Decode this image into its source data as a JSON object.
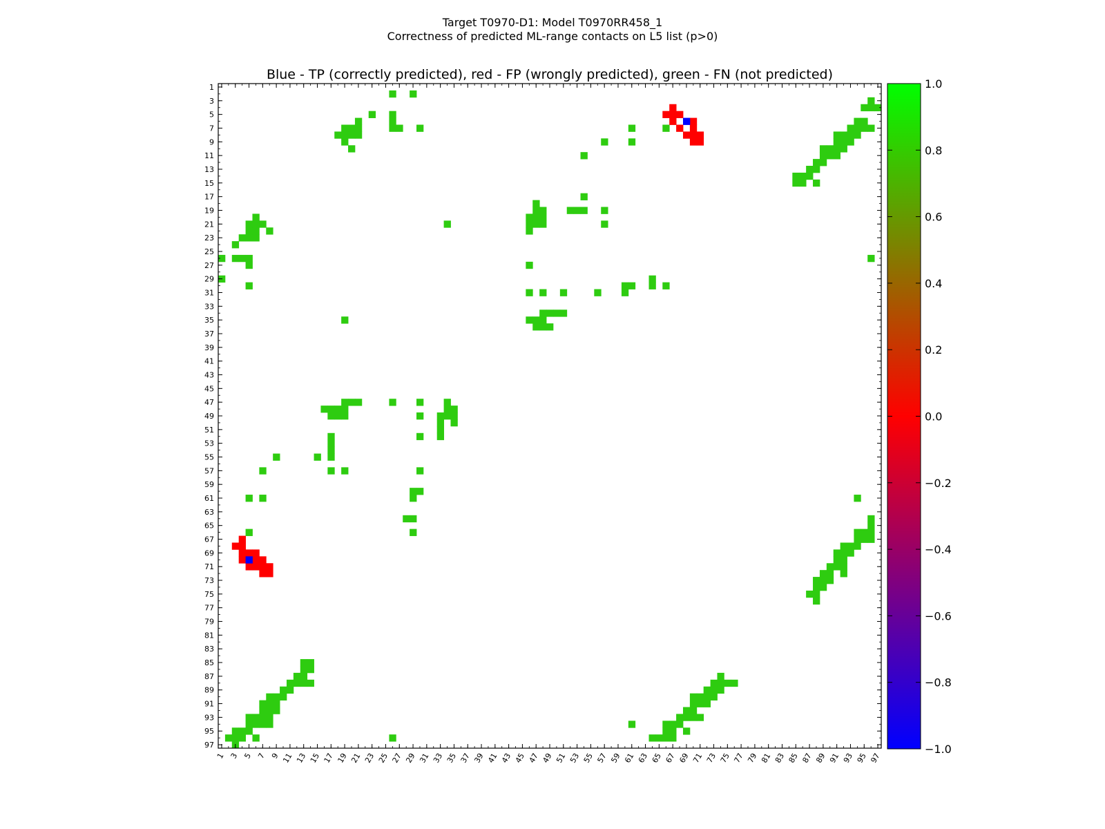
{
  "suptitle_line1": "Target T0970-D1: Model T0970RR458_1",
  "suptitle_line2": "Correctness of predicted ML-range contacts on L5 list (p>0)",
  "chart_data": {
    "type": "heatmap",
    "title": "Blue - TP (correctly predicted), red - FP (wrongly predicted), green - FN (not predicted)",
    "n": 97,
    "x_range": [
      1,
      97
    ],
    "y_range": [
      1,
      97
    ],
    "tick_labels": [
      1,
      3,
      5,
      7,
      9,
      11,
      13,
      15,
      17,
      19,
      21,
      23,
      25,
      27,
      29,
      31,
      33,
      35,
      37,
      39,
      41,
      43,
      45,
      47,
      49,
      51,
      53,
      55,
      57,
      59,
      61,
      63,
      65,
      67,
      69,
      71,
      73,
      75,
      77,
      79,
      81,
      83,
      85,
      87,
      89,
      91,
      93,
      95,
      97
    ],
    "colorbar": {
      "min": -1.0,
      "max": 1.0,
      "ticks": [
        "1.0",
        "0.8",
        "0.6",
        "0.4",
        "0.2",
        "0.0",
        "−0.2",
        "−0.4",
        "−0.6",
        "−0.8",
        "−1.0"
      ],
      "colors": [
        "#0000ff",
        "#ff0000",
        "#00ff00"
      ]
    },
    "legend_values": {
      "tp": -1.0,
      "fp": 0.0,
      "fn": 0.85
    },
    "cell_colors": {
      "fn": "#2ecc10",
      "fp": "#ff0000",
      "tp": "#0000ff"
    },
    "fn_cells": [
      [
        26,
        2
      ],
      [
        29,
        2
      ],
      [
        96,
        3
      ],
      [
        95,
        4
      ],
      [
        96,
        4
      ],
      [
        97,
        4
      ],
      [
        23,
        5
      ],
      [
        26,
        5
      ],
      [
        21,
        6
      ],
      [
        26,
        6
      ],
      [
        94,
        6
      ],
      [
        95,
        6
      ],
      [
        19,
        7
      ],
      [
        20,
        7
      ],
      [
        21,
        7
      ],
      [
        26,
        7
      ],
      [
        27,
        7
      ],
      [
        30,
        7
      ],
      [
        61,
        7
      ],
      [
        66,
        7
      ],
      [
        93,
        7
      ],
      [
        94,
        7
      ],
      [
        95,
        7
      ],
      [
        96,
        7
      ],
      [
        18,
        8
      ],
      [
        19,
        8
      ],
      [
        20,
        8
      ],
      [
        21,
        8
      ],
      [
        91,
        8
      ],
      [
        92,
        8
      ],
      [
        93,
        8
      ],
      [
        94,
        8
      ],
      [
        19,
        9
      ],
      [
        57,
        9
      ],
      [
        61,
        9
      ],
      [
        91,
        9
      ],
      [
        92,
        9
      ],
      [
        93,
        9
      ],
      [
        20,
        10
      ],
      [
        89,
        10
      ],
      [
        90,
        10
      ],
      [
        91,
        10
      ],
      [
        92,
        10
      ],
      [
        54,
        11
      ],
      [
        89,
        11
      ],
      [
        90,
        11
      ],
      [
        91,
        11
      ],
      [
        88,
        12
      ],
      [
        89,
        12
      ],
      [
        87,
        13
      ],
      [
        88,
        13
      ],
      [
        85,
        14
      ],
      [
        86,
        14
      ],
      [
        87,
        14
      ],
      [
        85,
        15
      ],
      [
        86,
        15
      ],
      [
        88,
        15
      ],
      [
        54,
        17
      ],
      [
        47,
        18
      ],
      [
        47,
        19
      ],
      [
        48,
        19
      ],
      [
        52,
        19
      ],
      [
        53,
        19
      ],
      [
        54,
        19
      ],
      [
        57,
        19
      ],
      [
        6,
        20
      ],
      [
        46,
        20
      ],
      [
        47,
        20
      ],
      [
        48,
        20
      ],
      [
        5,
        21
      ],
      [
        6,
        21
      ],
      [
        7,
        21
      ],
      [
        34,
        21
      ],
      [
        46,
        21
      ],
      [
        47,
        21
      ],
      [
        48,
        21
      ],
      [
        57,
        21
      ],
      [
        5,
        22
      ],
      [
        6,
        22
      ],
      [
        8,
        22
      ],
      [
        46,
        22
      ],
      [
        4,
        23
      ],
      [
        5,
        23
      ],
      [
        6,
        23
      ],
      [
        3,
        24
      ],
      [
        1,
        26
      ],
      [
        3,
        26
      ],
      [
        4,
        26
      ],
      [
        5,
        26
      ],
      [
        96,
        26
      ],
      [
        5,
        27
      ],
      [
        46,
        27
      ],
      [
        1,
        29
      ],
      [
        64,
        29
      ],
      [
        5,
        30
      ],
      [
        60,
        30
      ],
      [
        61,
        30
      ],
      [
        64,
        30
      ],
      [
        66,
        30
      ],
      [
        46,
        31
      ],
      [
        48,
        31
      ],
      [
        51,
        31
      ],
      [
        56,
        31
      ],
      [
        60,
        31
      ],
      [
        48,
        34
      ],
      [
        49,
        34
      ],
      [
        50,
        34
      ],
      [
        51,
        34
      ],
      [
        19,
        35
      ],
      [
        46,
        35
      ],
      [
        47,
        35
      ],
      [
        48,
        35
      ],
      [
        47,
        36
      ],
      [
        48,
        36
      ],
      [
        49,
        36
      ],
      [
        19,
        47
      ],
      [
        20,
        47
      ],
      [
        21,
        47
      ],
      [
        26,
        47
      ],
      [
        30,
        47
      ],
      [
        34,
        47
      ],
      [
        16,
        48
      ],
      [
        17,
        48
      ],
      [
        18,
        48
      ],
      [
        19,
        48
      ],
      [
        34,
        48
      ],
      [
        35,
        48
      ],
      [
        17,
        49
      ],
      [
        18,
        49
      ],
      [
        19,
        49
      ],
      [
        30,
        49
      ],
      [
        33,
        49
      ],
      [
        34,
        49
      ],
      [
        35,
        49
      ],
      [
        33,
        50
      ],
      [
        35,
        50
      ],
      [
        33,
        51
      ],
      [
        17,
        52
      ],
      [
        30,
        52
      ],
      [
        33,
        52
      ],
      [
        17,
        53
      ],
      [
        17,
        54
      ],
      [
        9,
        55
      ],
      [
        15,
        55
      ],
      [
        17,
        55
      ],
      [
        7,
        57
      ],
      [
        17,
        57
      ],
      [
        19,
        57
      ],
      [
        30,
        57
      ],
      [
        29,
        60
      ],
      [
        30,
        60
      ],
      [
        29,
        61
      ],
      [
        5,
        61
      ],
      [
        7,
        61
      ],
      [
        94,
        61
      ],
      [
        28,
        64
      ],
      [
        29,
        64
      ],
      [
        96,
        64
      ],
      [
        96,
        65
      ],
      [
        29,
        66
      ],
      [
        5,
        66
      ],
      [
        94,
        66
      ],
      [
        95,
        66
      ],
      [
        96,
        66
      ],
      [
        94,
        67
      ],
      [
        95,
        67
      ],
      [
        96,
        67
      ],
      [
        92,
        68
      ],
      [
        93,
        68
      ],
      [
        94,
        68
      ],
      [
        91,
        69
      ],
      [
        92,
        69
      ],
      [
        93,
        69
      ],
      [
        91,
        70
      ],
      [
        92,
        70
      ],
      [
        90,
        71
      ],
      [
        91,
        71
      ],
      [
        92,
        71
      ],
      [
        89,
        72
      ],
      [
        90,
        72
      ],
      [
        92,
        72
      ],
      [
        88,
        73
      ],
      [
        89,
        73
      ],
      [
        90,
        73
      ],
      [
        88,
        74
      ],
      [
        89,
        74
      ],
      [
        87,
        75
      ],
      [
        88,
        75
      ],
      [
        88,
        76
      ],
      [
        13,
        85
      ],
      [
        14,
        85
      ],
      [
        13,
        86
      ],
      [
        14,
        86
      ],
      [
        12,
        87
      ],
      [
        13,
        87
      ],
      [
        11,
        88
      ],
      [
        12,
        88
      ],
      [
        13,
        88
      ],
      [
        14,
        88
      ],
      [
        74,
        87
      ],
      [
        73,
        88
      ],
      [
        74,
        88
      ],
      [
        75,
        88
      ],
      [
        76,
        88
      ],
      [
        10,
        89
      ],
      [
        11,
        89
      ],
      [
        8,
        90
      ],
      [
        9,
        90
      ],
      [
        10,
        90
      ],
      [
        72,
        89
      ],
      [
        73,
        89
      ],
      [
        74,
        89
      ],
      [
        70,
        90
      ],
      [
        71,
        90
      ],
      [
        72,
        90
      ],
      [
        73,
        90
      ],
      [
        7,
        91
      ],
      [
        8,
        91
      ],
      [
        9,
        91
      ],
      [
        70,
        91
      ],
      [
        71,
        91
      ],
      [
        72,
        91
      ],
      [
        7,
        92
      ],
      [
        8,
        92
      ],
      [
        9,
        92
      ],
      [
        69,
        92
      ],
      [
        70,
        92
      ],
      [
        5,
        93
      ],
      [
        6,
        93
      ],
      [
        7,
        93
      ],
      [
        8,
        93
      ],
      [
        68,
        93
      ],
      [
        69,
        93
      ],
      [
        70,
        93
      ],
      [
        71,
        93
      ],
      [
        5,
        94
      ],
      [
        6,
        94
      ],
      [
        7,
        94
      ],
      [
        8,
        94
      ],
      [
        61,
        94
      ],
      [
        66,
        94
      ],
      [
        67,
        94
      ],
      [
        68,
        94
      ],
      [
        3,
        95
      ],
      [
        4,
        95
      ],
      [
        5,
        95
      ],
      [
        66,
        95
      ],
      [
        67,
        95
      ],
      [
        69,
        95
      ],
      [
        2,
        96
      ],
      [
        3,
        96
      ],
      [
        4,
        96
      ],
      [
        6,
        96
      ],
      [
        26,
        96
      ],
      [
        64,
        96
      ],
      [
        65,
        96
      ],
      [
        66,
        96
      ],
      [
        67,
        96
      ],
      [
        3,
        97
      ]
    ],
    "fp_cells": [
      [
        67,
        4
      ],
      [
        66,
        5
      ],
      [
        67,
        5
      ],
      [
        68,
        5
      ],
      [
        67,
        6
      ],
      [
        70,
        6
      ],
      [
        68,
        7
      ],
      [
        70,
        7
      ],
      [
        69,
        8
      ],
      [
        70,
        8
      ],
      [
        71,
        8
      ],
      [
        70,
        9
      ],
      [
        71,
        9
      ],
      [
        4,
        67
      ],
      [
        3,
        68
      ],
      [
        4,
        68
      ],
      [
        4,
        69
      ],
      [
        5,
        69
      ],
      [
        6,
        69
      ],
      [
        4,
        70
      ],
      [
        6,
        70
      ],
      [
        7,
        70
      ],
      [
        5,
        71
      ],
      [
        6,
        71
      ],
      [
        7,
        71
      ],
      [
        8,
        71
      ],
      [
        7,
        72
      ],
      [
        8,
        72
      ]
    ],
    "tp_cells": [
      [
        69,
        6
      ],
      [
        5,
        70
      ]
    ]
  }
}
